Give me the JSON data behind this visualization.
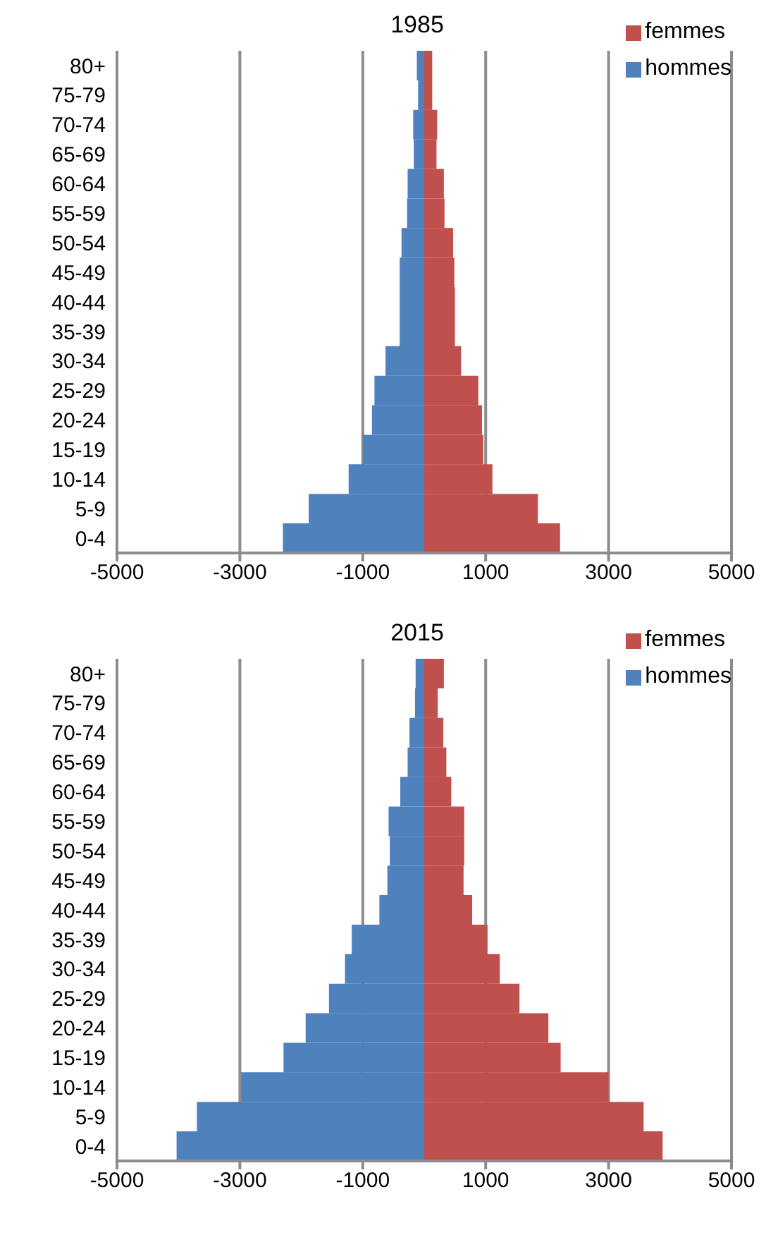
{
  "chart_data": [
    {
      "type": "bar",
      "title": "1985",
      "orientation": "horizontal",
      "stacked": true,
      "categories": [
        "80+",
        "75-79",
        "70-74",
        "65-69",
        "60-64",
        "55-59",
        "50-54",
        "45-49",
        "40-44",
        "35-39",
        "30-34",
        "25-29",
        "20-24",
        "15-19",
        "10-14",
        "5-9",
        "0-4"
      ],
      "series": [
        {
          "name": "femmes",
          "color": "#c0504d",
          "values": [
            130,
            130,
            210,
            200,
            320,
            330,
            470,
            490,
            500,
            500,
            600,
            880,
            940,
            960,
            1110,
            1850,
            2210
          ]
        },
        {
          "name": "hommes",
          "color": "#4f81bd",
          "values": [
            -120,
            -100,
            -180,
            -170,
            -270,
            -280,
            -370,
            -400,
            -400,
            -400,
            -630,
            -810,
            -850,
            -1000,
            -1230,
            -1880,
            -2300
          ]
        }
      ],
      "xlim": [
        -5000,
        5000
      ],
      "xticks": [
        -5000,
        -3000,
        -1000,
        1000,
        3000,
        5000
      ],
      "grid": "x",
      "legend": "top right"
    },
    {
      "type": "bar",
      "title": "2015",
      "orientation": "horizontal",
      "stacked": true,
      "categories": [
        "80+",
        "75-79",
        "70-74",
        "65-69",
        "60-64",
        "55-59",
        "50-54",
        "45-49",
        "40-44",
        "35-39",
        "30-34",
        "25-29",
        "20-24",
        "15-19",
        "10-14",
        "5-9",
        "0-4"
      ],
      "series": [
        {
          "name": "femmes",
          "color": "#c0504d",
          "values": [
            320,
            220,
            310,
            360,
            440,
            650,
            650,
            640,
            780,
            1030,
            1230,
            1550,
            2020,
            2220,
            3000,
            3570,
            3880
          ]
        },
        {
          "name": "hommes",
          "color": "#4f81bd",
          "values": [
            -140,
            -150,
            -240,
            -270,
            -390,
            -580,
            -560,
            -600,
            -730,
            -1180,
            -1290,
            -1550,
            -1930,
            -2290,
            -2980,
            -3700,
            -4030
          ]
        }
      ],
      "xlim": [
        -5000,
        5000
      ],
      "xticks": [
        -5000,
        -3000,
        -1000,
        1000,
        3000,
        5000
      ],
      "grid": "x",
      "legend": "top right"
    }
  ]
}
